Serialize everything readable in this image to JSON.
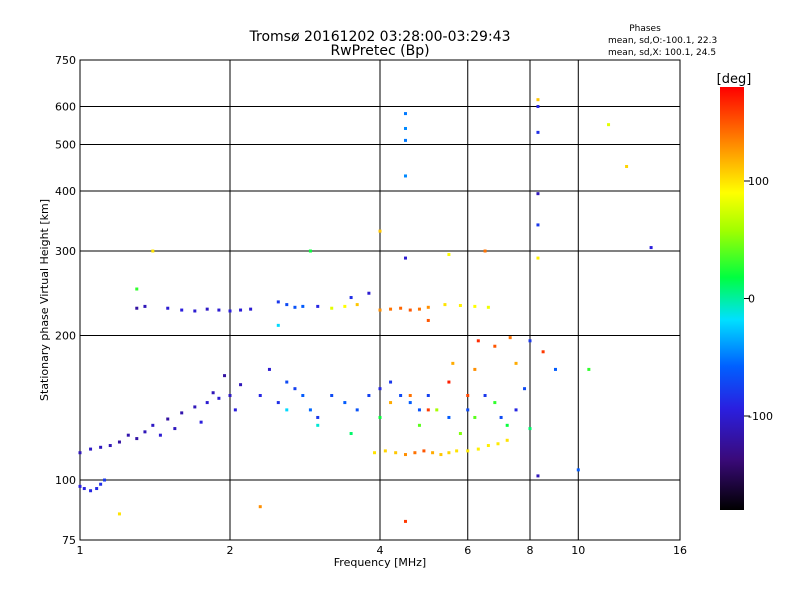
{
  "chart_data": {
    "type": "scatter",
    "title": "Tromsø 20161202 03:28:00-03:29:43",
    "subtitle": "RwPretec (Bp)",
    "xlabel": "Frequency [MHz]",
    "ylabel": "Stationary phase Virtual Height [km]",
    "x_scale": "log",
    "y_scale": "log",
    "xlim": [
      1,
      16
    ],
    "ylim": [
      75,
      750
    ],
    "x_ticks": [
      1,
      2,
      4,
      6,
      8,
      10,
      16
    ],
    "x_tick_labels": [
      "1",
      "2",
      "4",
      "6",
      "8",
      "10",
      "16"
    ],
    "y_ticks": [
      75,
      100,
      200,
      300,
      400,
      500,
      600,
      750
    ],
    "y_tick_labels": [
      "75",
      "100",
      "200",
      "300",
      "400",
      "500",
      "600",
      "750"
    ],
    "grid": true,
    "annotation": {
      "title": "Phases",
      "line1": "mean, sd,O:-100.1, 22.3",
      "line2": "mean, sd,X: 100.1, 24.5"
    },
    "colorbar": {
      "label": "[deg]",
      "range": [
        -180,
        180
      ],
      "ticks": [
        100,
        0,
        -100
      ],
      "tick_labels": [
        "100",
        "0",
        "-100"
      ]
    },
    "series": [
      {
        "points": [
          [
            1.0,
            97,
            -95
          ],
          [
            1.02,
            96,
            -92
          ],
          [
            1.05,
            95,
            -90
          ],
          [
            1.08,
            96,
            -88
          ],
          [
            1.1,
            98,
            -85
          ],
          [
            1.12,
            100,
            -80
          ],
          [
            1.0,
            114,
            -110
          ],
          [
            1.05,
            116,
            -105
          ],
          [
            1.1,
            117,
            -108
          ],
          [
            1.15,
            118,
            -112
          ],
          [
            1.2,
            120,
            -120
          ],
          [
            1.25,
            124,
            -115
          ],
          [
            1.3,
            122,
            -118
          ],
          [
            1.35,
            126,
            -110
          ],
          [
            1.4,
            130,
            -105
          ],
          [
            1.45,
            124,
            -100
          ],
          [
            1.5,
            134,
            -120
          ],
          [
            1.55,
            128,
            -108
          ],
          [
            1.6,
            138,
            -115
          ],
          [
            1.7,
            142,
            -110
          ],
          [
            1.75,
            132,
            -95
          ],
          [
            1.8,
            145,
            -100
          ],
          [
            1.85,
            152,
            -110
          ],
          [
            1.9,
            148,
            -100
          ],
          [
            1.95,
            165,
            -120
          ],
          [
            2.0,
            150,
            -105
          ],
          [
            2.05,
            140,
            -95
          ],
          [
            2.1,
            158,
            -110
          ],
          [
            2.3,
            150,
            -90
          ],
          [
            2.4,
            170,
            -100
          ],
          [
            2.5,
            145,
            -85
          ],
          [
            2.6,
            160,
            -70
          ],
          [
            2.7,
            155,
            -75
          ],
          [
            2.8,
            150,
            -60
          ],
          [
            2.9,
            140,
            -55
          ],
          [
            3.0,
            135,
            -80
          ],
          [
            3.2,
            150,
            -70
          ],
          [
            3.4,
            145,
            -60
          ],
          [
            3.6,
            140,
            -65
          ],
          [
            3.8,
            150,
            -75
          ],
          [
            4.0,
            155,
            -90
          ],
          [
            4.2,
            160,
            -80
          ],
          [
            4.4,
            150,
            -70
          ],
          [
            4.6,
            145,
            -60
          ],
          [
            4.8,
            140,
            -65
          ],
          [
            5.0,
            150,
            -75
          ],
          [
            5.5,
            135,
            -60
          ],
          [
            6.0,
            140,
            -70
          ],
          [
            6.5,
            150,
            -80
          ],
          [
            7.0,
            135,
            -70
          ],
          [
            7.5,
            140,
            -90
          ],
          [
            1.5,
            228,
            -100
          ],
          [
            1.6,
            226,
            -95
          ],
          [
            1.7,
            225,
            -100
          ],
          [
            1.8,
            227,
            -105
          ],
          [
            1.9,
            226,
            -100
          ],
          [
            2.0,
            225,
            -95
          ],
          [
            2.1,
            226,
            -98
          ],
          [
            2.2,
            227,
            -100
          ],
          [
            1.3,
            228,
            -120
          ],
          [
            1.35,
            230,
            -110
          ],
          [
            2.5,
            235,
            -80
          ],
          [
            2.6,
            232,
            -70
          ],
          [
            2.7,
            229,
            -65
          ],
          [
            2.8,
            230,
            -60
          ],
          [
            3.0,
            230,
            -90
          ],
          [
            3.5,
            240,
            -85
          ],
          [
            3.8,
            245,
            -100
          ],
          [
            4.5,
            290,
            -100
          ],
          [
            8.3,
            395,
            -110
          ],
          [
            8.3,
            340,
            -80
          ],
          [
            8.3,
            600,
            -90
          ],
          [
            8.3,
            530,
            -85
          ],
          [
            8.3,
            102,
            -110
          ],
          [
            14.0,
            305,
            -95
          ],
          [
            8.0,
            195,
            -80
          ],
          [
            7.8,
            155,
            -70
          ],
          [
            9.0,
            170,
            -60
          ],
          [
            10.0,
            105,
            -60
          ],
          [
            4.5,
            580,
            -50
          ],
          [
            4.5,
            540,
            -45
          ],
          [
            4.5,
            510,
            -50
          ],
          [
            4.5,
            430,
            -45
          ],
          [
            2.5,
            210,
            -20
          ],
          [
            2.9,
            300,
            20
          ],
          [
            1.3,
            250,
            30
          ],
          [
            2.6,
            140,
            -20
          ],
          [
            3.0,
            130,
            -10
          ],
          [
            3.5,
            125,
            10
          ],
          [
            4.0,
            135,
            20
          ],
          [
            4.8,
            130,
            40
          ],
          [
            5.2,
            140,
            60
          ],
          [
            5.8,
            125,
            50
          ],
          [
            6.2,
            135,
            40
          ],
          [
            6.8,
            145,
            30
          ],
          [
            7.2,
            130,
            20
          ],
          [
            8.0,
            128,
            10
          ],
          [
            10.5,
            170,
            30
          ],
          [
            3.2,
            228,
            80
          ],
          [
            3.4,
            230,
            90
          ],
          [
            3.6,
            232,
            110
          ],
          [
            4.0,
            226,
            130
          ],
          [
            4.2,
            227,
            140
          ],
          [
            4.4,
            228,
            145
          ],
          [
            4.6,
            226,
            150
          ],
          [
            4.8,
            227,
            140
          ],
          [
            5.0,
            229,
            130
          ],
          [
            5.4,
            232,
            100
          ],
          [
            5.8,
            231,
            95
          ],
          [
            6.2,
            230,
            90
          ],
          [
            6.6,
            229,
            85
          ],
          [
            3.9,
            114,
            100
          ],
          [
            4.1,
            115,
            105
          ],
          [
            4.3,
            114,
            110
          ],
          [
            4.5,
            113,
            130
          ],
          [
            4.7,
            114,
            140
          ],
          [
            4.9,
            115,
            150
          ],
          [
            5.1,
            114,
            120
          ],
          [
            5.3,
            113,
            110
          ],
          [
            5.5,
            114,
            105
          ],
          [
            5.7,
            115,
            100
          ],
          [
            6.0,
            115,
            98
          ],
          [
            6.3,
            116,
            95
          ],
          [
            6.6,
            118,
            96
          ],
          [
            6.9,
            119,
            97
          ],
          [
            7.2,
            121,
            100
          ],
          [
            4.2,
            145,
            120
          ],
          [
            4.6,
            150,
            140
          ],
          [
            5.0,
            140,
            160
          ],
          [
            5.5,
            160,
            170
          ],
          [
            6.0,
            150,
            155
          ],
          [
            6.3,
            195,
            165
          ],
          [
            6.8,
            190,
            150
          ],
          [
            7.3,
            198,
            140
          ],
          [
            6.2,
            170,
            130
          ],
          [
            5.6,
            175,
            120
          ],
          [
            4.0,
            330,
            110
          ],
          [
            5.5,
            295,
            90
          ],
          [
            6.5,
            300,
            140
          ],
          [
            12.5,
            450,
            105
          ],
          [
            11.5,
            550,
            80
          ],
          [
            8.3,
            620,
            110
          ],
          [
            8.3,
            290,
            95
          ],
          [
            1.2,
            85,
            100
          ],
          [
            2.3,
            88,
            130
          ],
          [
            4.5,
            82,
            160
          ],
          [
            1.4,
            300,
            100
          ],
          [
            7.5,
            175,
            120
          ],
          [
            8.5,
            185,
            160
          ],
          [
            5.0,
            215,
            150
          ]
        ]
      }
    ]
  }
}
